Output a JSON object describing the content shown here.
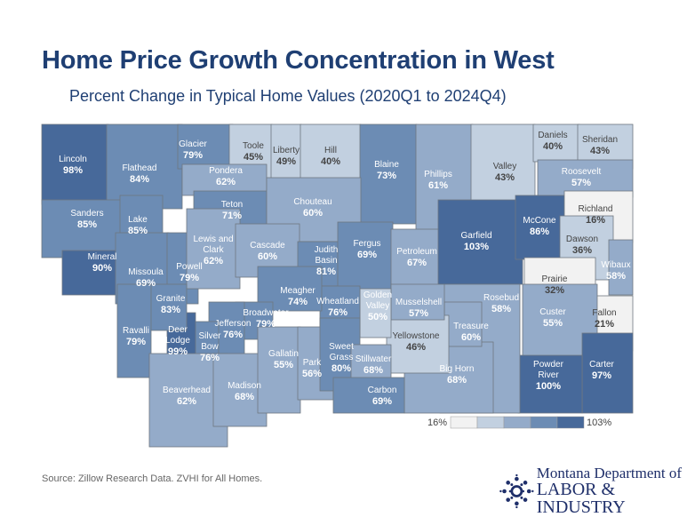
{
  "title": "Home Price Growth Concentration in West",
  "subtitle": "Percent Change in Typical Home Values (2020Q1 to 2024Q4)",
  "source": "Source:  Zillow Research Data. ZVHI for All Homes.",
  "logo": {
    "line1": "Montana Department of",
    "line2": "LABOR & INDUSTRY"
  },
  "legend": {
    "min_label": "16%",
    "max_label": "103%",
    "min": 16,
    "max": 103,
    "colors": [
      "#f2f2f2",
      "#c2d0e0",
      "#94abc9",
      "#6c8cb4",
      "#47699a"
    ]
  },
  "counties": [
    {
      "name": "Lincoln",
      "value": 98,
      "label": "98%"
    },
    {
      "name": "Flathead",
      "value": 84,
      "label": "84%"
    },
    {
      "name": "Glacier",
      "value": 79,
      "label": "79%"
    },
    {
      "name": "Toole",
      "value": 45,
      "label": "45%"
    },
    {
      "name": "Liberty",
      "value": 49,
      "label": "49%"
    },
    {
      "name": "Hill",
      "value": 40,
      "label": "40%"
    },
    {
      "name": "Blaine",
      "value": 73,
      "label": "73%"
    },
    {
      "name": "Phillips",
      "value": 61,
      "label": "61%"
    },
    {
      "name": "Valley",
      "value": 43,
      "label": "43%"
    },
    {
      "name": "Daniels",
      "value": 40,
      "label": "40%"
    },
    {
      "name": "Sheridan",
      "value": 43,
      "label": "43%"
    },
    {
      "name": "Roosevelt",
      "value": 57,
      "label": "57%"
    },
    {
      "name": "Pondera",
      "value": 62,
      "label": "62%"
    },
    {
      "name": "Teton",
      "value": 71,
      "label": "71%"
    },
    {
      "name": "Chouteau",
      "value": 60,
      "label": "60%"
    },
    {
      "name": "Sanders",
      "value": 85,
      "label": "85%"
    },
    {
      "name": "Lake",
      "value": 85,
      "label": "85%"
    },
    {
      "name": "Mineral",
      "value": 90,
      "label": "90%"
    },
    {
      "name": "Missoula",
      "value": 69,
      "label": "69%"
    },
    {
      "name": "Powell",
      "value": 79,
      "label": "79%"
    },
    {
      "name": "Lewis and Clark",
      "value": 62,
      "label": "62%"
    },
    {
      "name": "Cascade",
      "value": 60,
      "label": "60%"
    },
    {
      "name": "Judith Basin",
      "value": 81,
      "label": "81%"
    },
    {
      "name": "Fergus",
      "value": 69,
      "label": "69%"
    },
    {
      "name": "Petroleum",
      "value": 67,
      "label": "67%"
    },
    {
      "name": "Garfield",
      "value": 103,
      "label": "103%"
    },
    {
      "name": "McCone",
      "value": 86,
      "label": "86%"
    },
    {
      "name": "Richland",
      "value": 16,
      "label": "16%"
    },
    {
      "name": "Dawson",
      "value": 36,
      "label": "36%"
    },
    {
      "name": "Wibaux",
      "value": 58,
      "label": "58%"
    },
    {
      "name": "Prairie",
      "value": 32,
      "label": "32%"
    },
    {
      "name": "Fallon",
      "value": 21,
      "label": "21%"
    },
    {
      "name": "Custer",
      "value": 55,
      "label": "55%"
    },
    {
      "name": "Carter",
      "value": 97,
      "label": "97%"
    },
    {
      "name": "Powder River",
      "value": 100,
      "label": "100%"
    },
    {
      "name": "Rosebud",
      "value": 58,
      "label": "58%"
    },
    {
      "name": "Big Horn",
      "value": 68,
      "label": "68%"
    },
    {
      "name": "Treasure",
      "value": 60,
      "label": "60%"
    },
    {
      "name": "Yellowstone",
      "value": 46,
      "label": "46%"
    },
    {
      "name": "Musselshell",
      "value": 57,
      "label": "57%"
    },
    {
      "name": "Golden Valley",
      "value": 50,
      "label": "50%"
    },
    {
      "name": "Wheatland",
      "value": 76,
      "label": "76%"
    },
    {
      "name": "Meagher",
      "value": 74,
      "label": "74%"
    },
    {
      "name": "Broadwater",
      "value": 79,
      "label": "79%"
    },
    {
      "name": "Jefferson",
      "value": 76,
      "label": "76%"
    },
    {
      "name": "Silver Bow",
      "value": 76,
      "label": "76%"
    },
    {
      "name": "Deer Lodge",
      "value": 99,
      "label": "99%"
    },
    {
      "name": "Granite",
      "value": 83,
      "label": "83%"
    },
    {
      "name": "Ravalli",
      "value": 79,
      "label": "79%"
    },
    {
      "name": "Beaverhead",
      "value": 62,
      "label": "62%"
    },
    {
      "name": "Madison",
      "value": 68,
      "label": "68%"
    },
    {
      "name": "Gallatin",
      "value": 55,
      "label": "55%"
    },
    {
      "name": "Park",
      "value": 56,
      "label": "56%"
    },
    {
      "name": "Sweet Grass",
      "value": 80,
      "label": "80%"
    },
    {
      "name": "Stillwater",
      "value": 68,
      "label": "68%"
    },
    {
      "name": "Carbon",
      "value": 69,
      "label": "69%"
    }
  ]
}
